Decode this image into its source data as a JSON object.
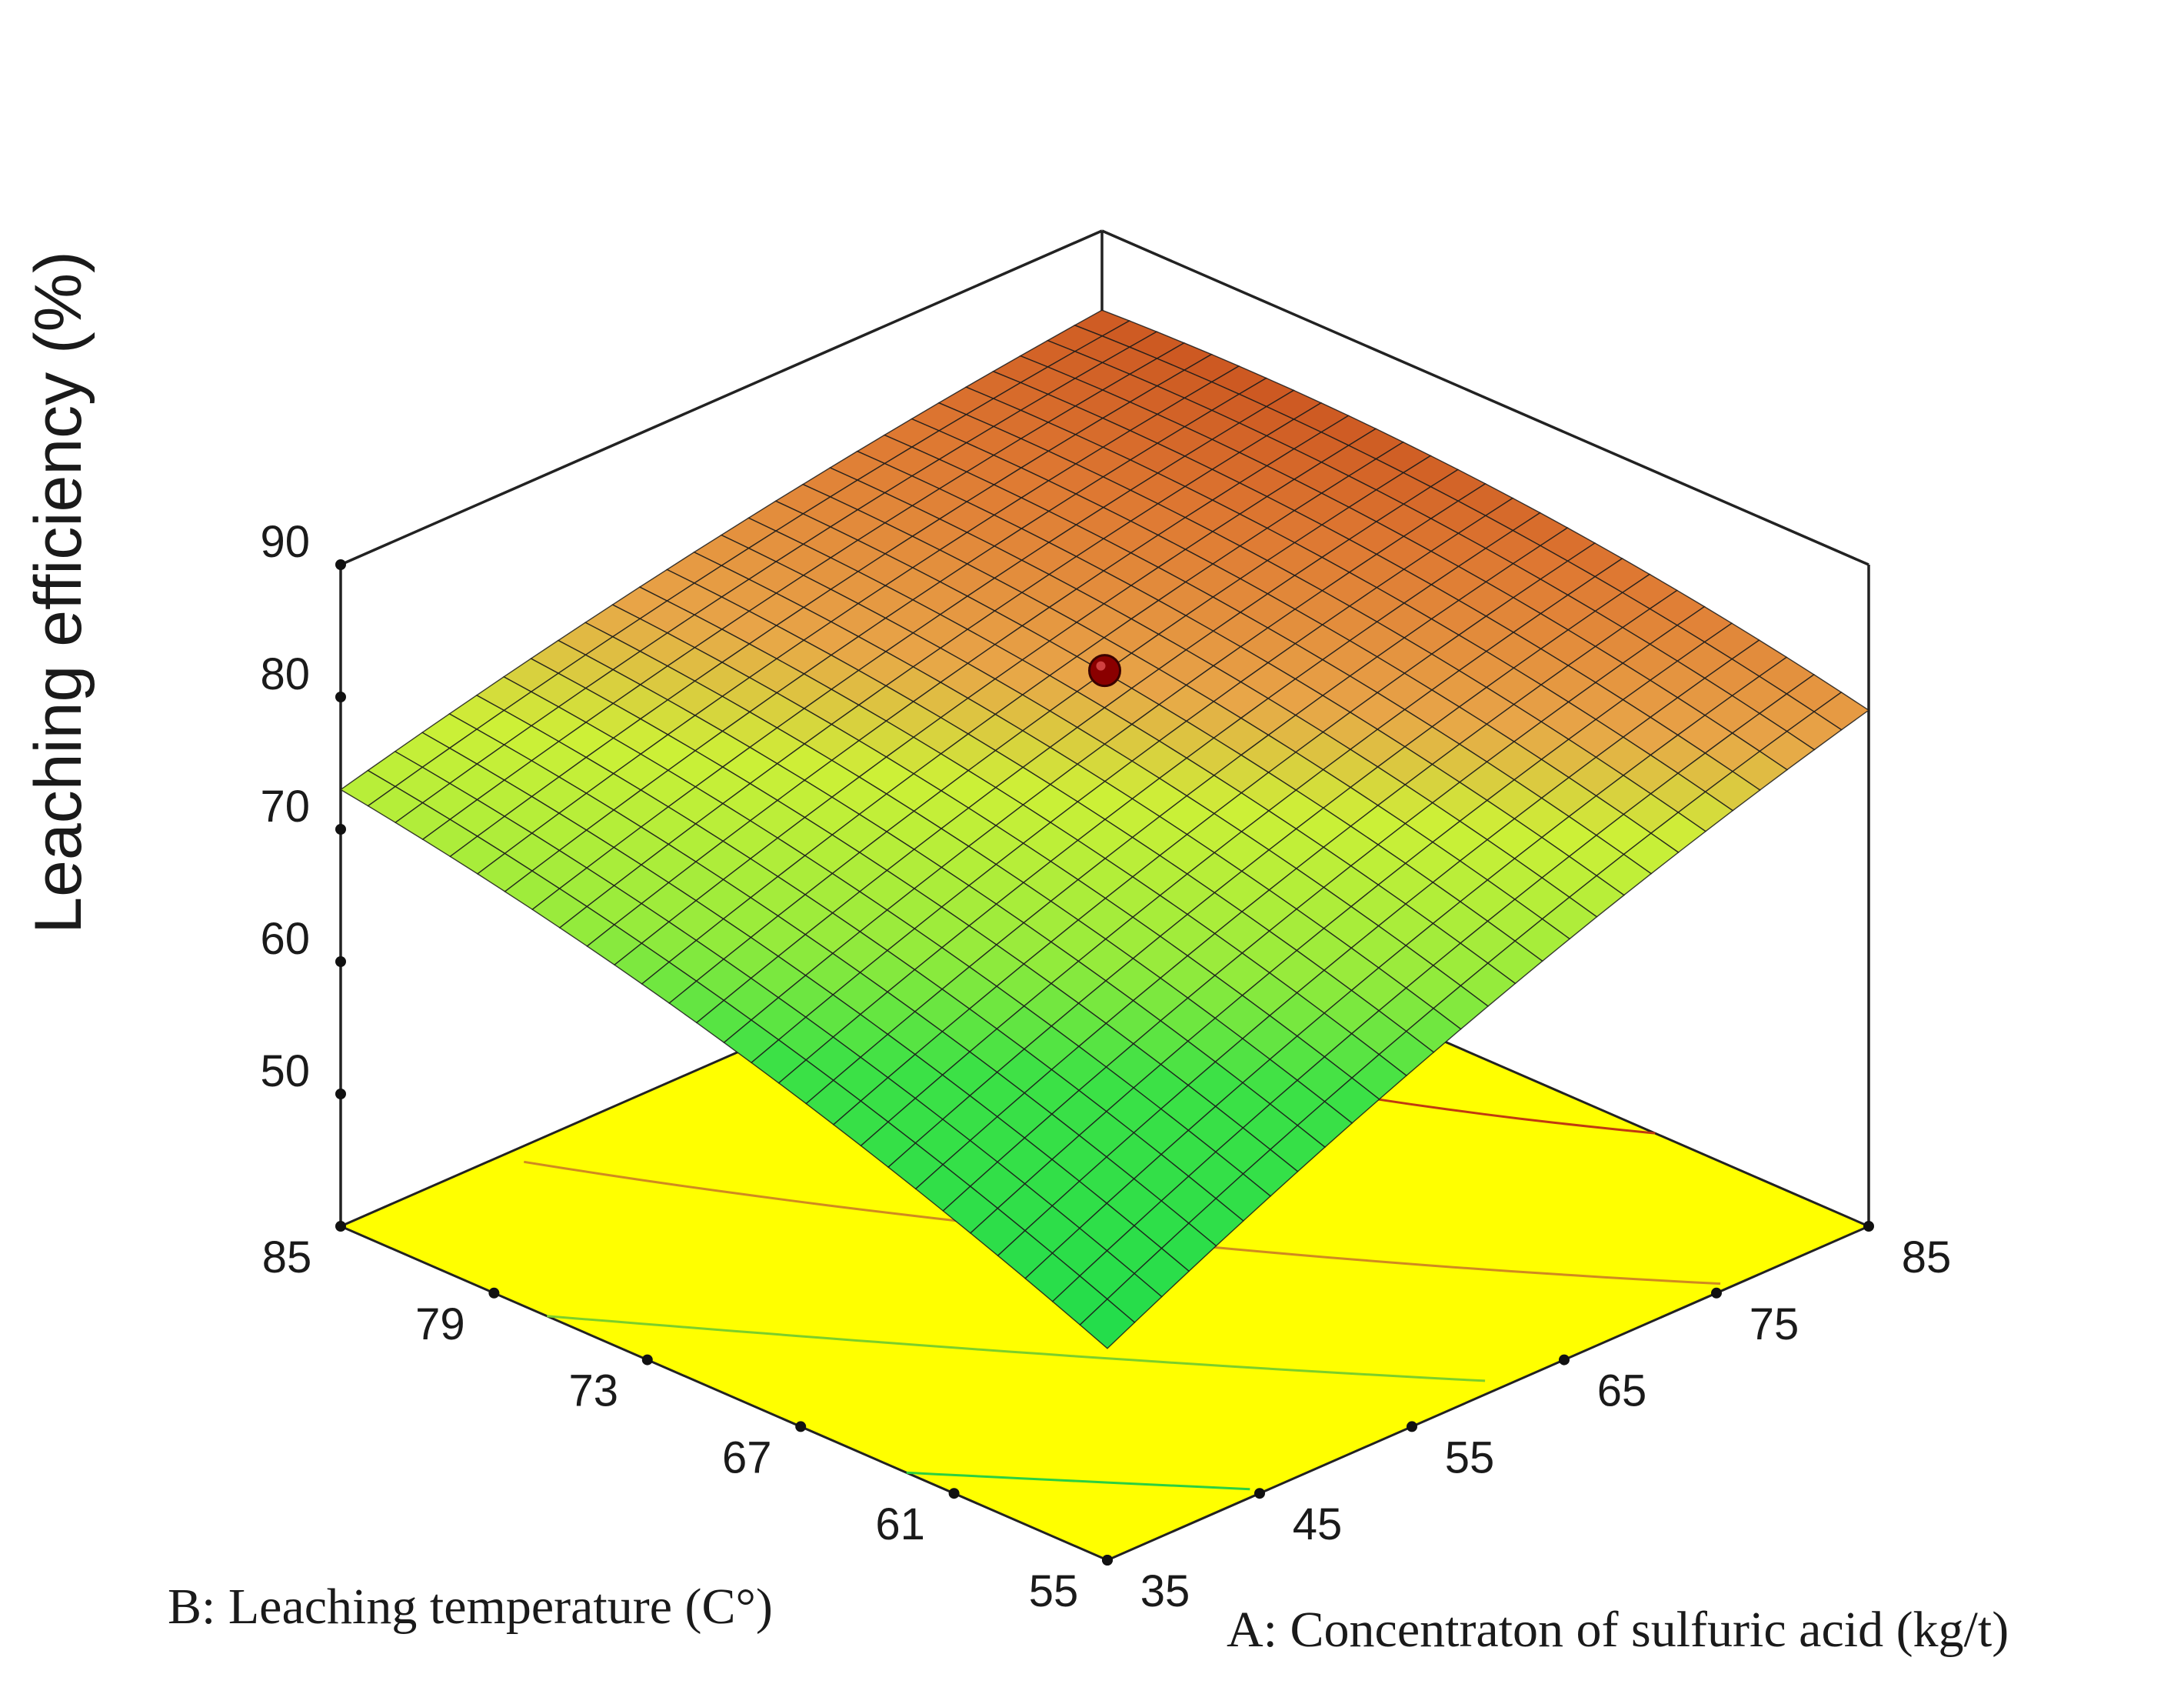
{
  "chart_data": {
    "type": "surface",
    "title": "",
    "zlabel": "Leaching efficiency (%)",
    "xlabel": "A: Concentraton of sulfuric acid (kg/t)",
    "ylabel": "B: Leaching temperature (C°)",
    "x_range": [
      35,
      85
    ],
    "y_range": [
      55,
      85
    ],
    "z_range": [
      40,
      90
    ],
    "z_ticks": [
      50,
      60,
      70,
      80,
      90
    ],
    "z_tick_labels": [
      "50",
      "60",
      "70",
      "80",
      "90"
    ],
    "x_ticks": [
      35,
      45,
      55,
      65,
      75,
      85
    ],
    "x_tick_labels": [
      "35",
      "45",
      "55",
      "65",
      "75",
      "85"
    ],
    "y_ticks": [
      55,
      61,
      67,
      73,
      79,
      85
    ],
    "y_tick_labels": [
      "55",
      "61",
      "67",
      "73",
      "79",
      "85"
    ],
    "surface_corners": [
      {
        "x": 35,
        "y": 55,
        "z": 56
      },
      {
        "x": 85,
        "y": 55,
        "z": 79
      },
      {
        "x": 35,
        "y": 85,
        "z": 73
      },
      {
        "x": 85,
        "y": 85,
        "z": 84
      }
    ],
    "design_point": {
      "x": 60,
      "y": 70,
      "z": 82
    },
    "colors": {
      "low": "#1fdc4c",
      "mid": "#c8f03a",
      "high1": "#e8a048",
      "high2": "#b83a10",
      "floor": "#ffff00",
      "mesh": "#1a1a1a",
      "point": "#8a0000"
    }
  }
}
